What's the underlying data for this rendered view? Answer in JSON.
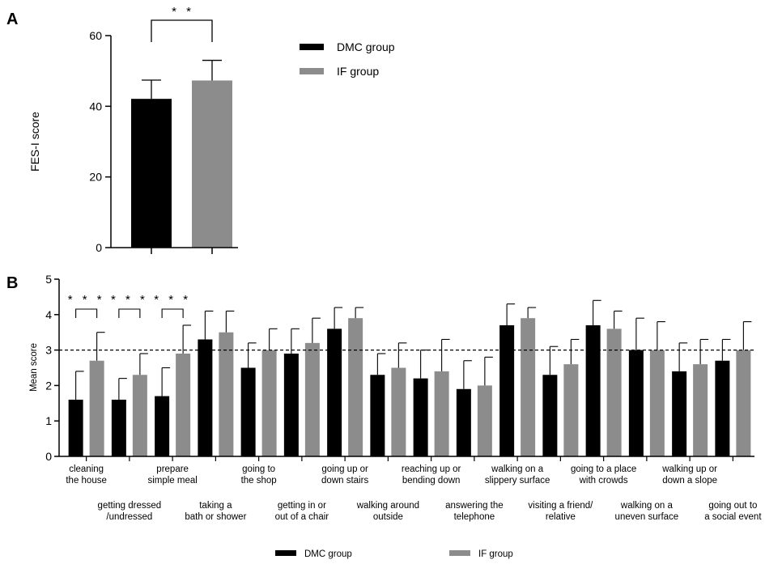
{
  "colors": {
    "dmc": "#000000",
    "if": "#8c8c8c",
    "axis": "#000000"
  },
  "chart_data": [
    {
      "panel": "A",
      "type": "bar",
      "ylabel": "FES-I score",
      "ylim": [
        0,
        60
      ],
      "yticks": [
        "0",
        "20",
        "40",
        "60"
      ],
      "series": [
        {
          "name": "DMC group",
          "value": 42.1,
          "error": 5.3
        },
        {
          "name": "IF group",
          "value": 47.3,
          "error": 5.7
        }
      ],
      "significance": "* *",
      "legend": [
        "DMC group",
        "IF group"
      ],
      "legend_position": "right"
    },
    {
      "panel": "B",
      "type": "bar",
      "ylabel": "Mean score",
      "ylim": [
        0,
        5
      ],
      "yticks": [
        "0",
        "1",
        "2",
        "3",
        "4",
        "5"
      ],
      "reference_line": 3,
      "categories": [
        "cleaning the house",
        "getting dressed /undressed",
        "prepare simple meal",
        "taking a bath or shower",
        "going to the shop",
        "getting in or out of a chair",
        "going up or down stairs",
        "walking around outside",
        "reaching up or bending down",
        "answering the telephone",
        "walking on a slippery surface",
        "visiting a friend/ relative",
        "going to a place with crowds",
        "walking on a uneven surface",
        "walking up or down a slope",
        "going out to a social event"
      ],
      "category_labels": [
        [
          "cleaning",
          "the house"
        ],
        [
          "getting dressed",
          "/undressed"
        ],
        [
          "prepare",
          "simple meal"
        ],
        [
          "taking a",
          "bath or shower"
        ],
        [
          "going to",
          "the shop"
        ],
        [
          "getting in or",
          "out of a chair"
        ],
        [
          "going up or",
          "down stairs"
        ],
        [
          "walking around",
          "outside"
        ],
        [
          "reaching up or",
          "bending down"
        ],
        [
          "answering the",
          "telephone"
        ],
        [
          "walking on a",
          "slippery surface"
        ],
        [
          "visiting a friend/",
          "relative"
        ],
        [
          "going to a place",
          "with crowds"
        ],
        [
          "walking on a",
          "uneven surface"
        ],
        [
          "walking up or",
          "down a slope"
        ],
        [
          "going out to",
          "a social event"
        ]
      ],
      "series": [
        {
          "name": "DMC group",
          "values": [
            1.6,
            1.6,
            1.7,
            3.3,
            2.5,
            2.9,
            3.6,
            2.3,
            2.2,
            1.9,
            3.7,
            2.3,
            3.7,
            3.0,
            2.4,
            2.7
          ],
          "errors": [
            0.8,
            0.6,
            0.8,
            0.8,
            0.7,
            0.7,
            0.6,
            0.6,
            0.8,
            0.8,
            0.6,
            0.8,
            0.7,
            0.9,
            0.8,
            0.6
          ]
        },
        {
          "name": "IF group",
          "values": [
            2.7,
            2.3,
            2.9,
            3.5,
            3.0,
            3.2,
            3.9,
            2.5,
            2.4,
            2.0,
            3.9,
            2.6,
            3.6,
            3.0,
            2.6,
            3.0
          ],
          "errors": [
            0.8,
            0.6,
            0.8,
            0.6,
            0.6,
            0.7,
            0.3,
            0.7,
            0.9,
            0.8,
            0.3,
            0.7,
            0.5,
            0.8,
            0.7,
            0.8
          ]
        }
      ],
      "significance": [
        {
          "category_index": 0,
          "label": "* * *"
        },
        {
          "category_index": 1,
          "label": "* * *"
        },
        {
          "category_index": 2,
          "label": "* * *"
        }
      ],
      "legend": [
        "DMC group",
        "IF group"
      ],
      "legend_position": "bottom"
    }
  ]
}
